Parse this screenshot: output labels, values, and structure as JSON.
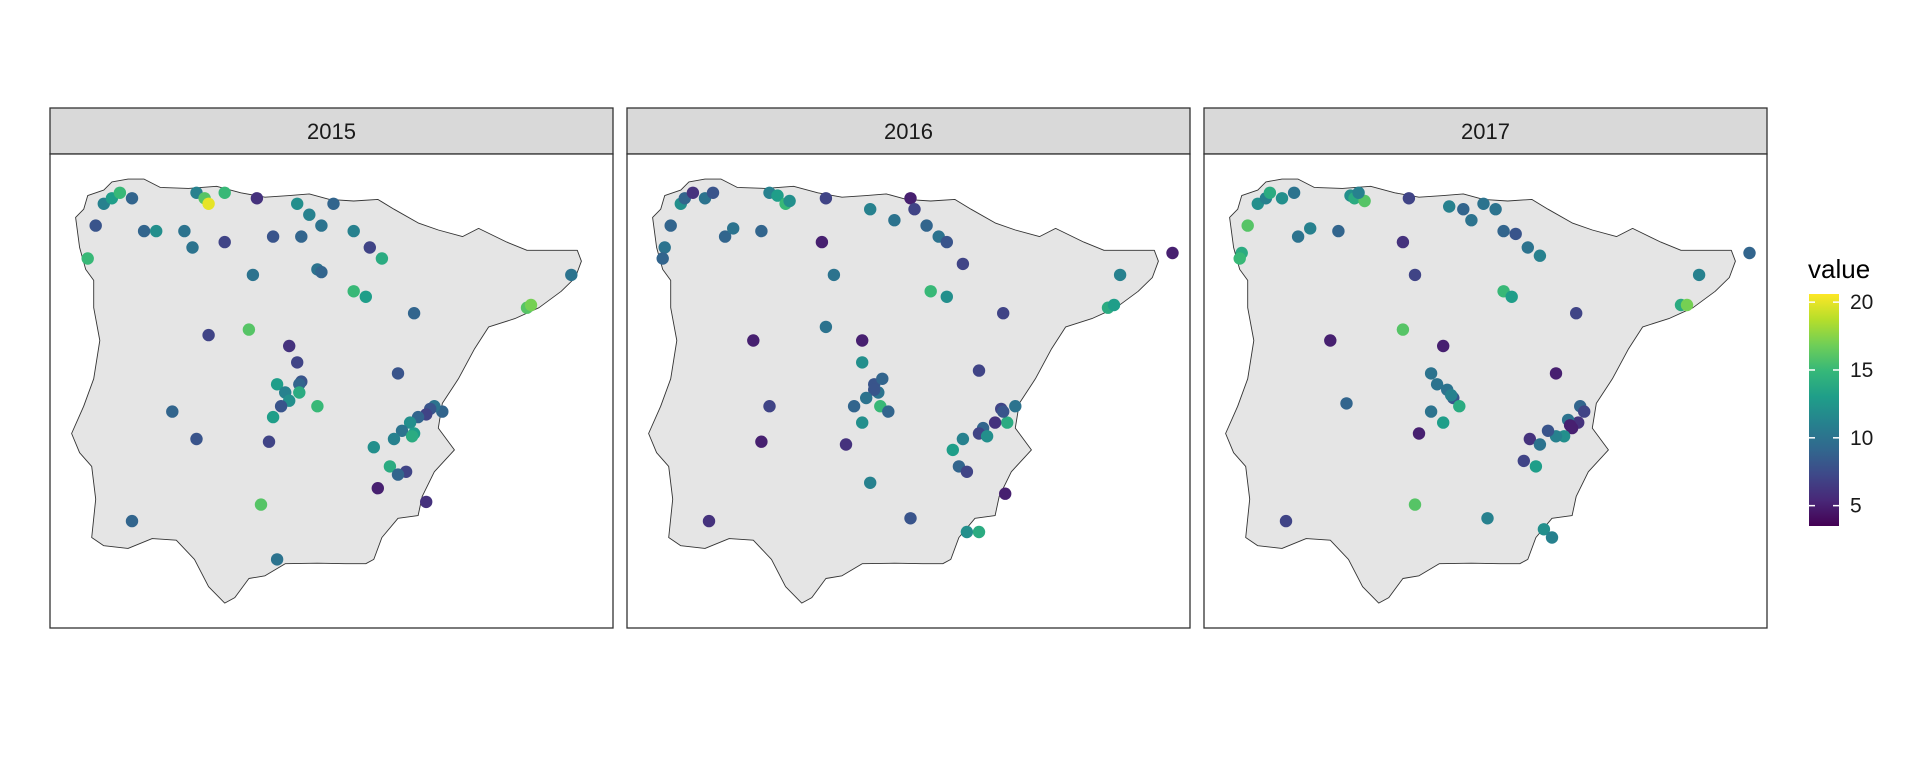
{
  "chart_data": {
    "type": "scatter",
    "subtype": "faceted point map (Iberian Peninsula)",
    "facets": [
      "2015",
      "2016",
      "2017"
    ],
    "legend": {
      "title": "value",
      "placement": "right",
      "ticks": [
        5,
        10,
        15,
        20
      ],
      "range": [
        3.5,
        20.6
      ],
      "palette": [
        "#440154",
        "#482878",
        "#3e4989",
        "#31688e",
        "#26828e",
        "#1f9e89",
        "#35b779",
        "#6ece58",
        "#b5de2b",
        "#fde725"
      ]
    },
    "grid": false,
    "points": {
      "2015": [
        [
          -8.6,
          43.3,
          11
        ],
        [
          -8.4,
          43.4,
          13
        ],
        [
          -8.2,
          43.5,
          15
        ],
        [
          -7.9,
          43.4,
          9
        ],
        [
          -8.8,
          42.9,
          8
        ],
        [
          -9.0,
          42.3,
          15
        ],
        [
          -7.6,
          42.8,
          9
        ],
        [
          -7.3,
          42.8,
          12
        ],
        [
          -6.3,
          43.5,
          11
        ],
        [
          -6.1,
          43.4,
          16
        ],
        [
          -6.0,
          43.3,
          20
        ],
        [
          -5.6,
          43.5,
          15
        ],
        [
          -4.8,
          43.4,
          6
        ],
        [
          -6.4,
          42.5,
          10
        ],
        [
          -6.6,
          42.8,
          10
        ],
        [
          -5.6,
          42.6,
          7
        ],
        [
          -4.9,
          42.0,
          10
        ],
        [
          -4.4,
          42.7,
          8
        ],
        [
          -3.8,
          43.3,
          12
        ],
        [
          -3.5,
          43.1,
          11
        ],
        [
          -3.2,
          42.9,
          10
        ],
        [
          -2.9,
          43.3,
          9
        ],
        [
          -3.7,
          42.7,
          9
        ],
        [
          -2.4,
          42.8,
          11
        ],
        [
          -2.0,
          42.5,
          7
        ],
        [
          -3.3,
          42.1,
          10
        ],
        [
          -3.2,
          42.05,
          9
        ],
        [
          -1.7,
          42.3,
          14
        ],
        [
          -2.4,
          41.7,
          15
        ],
        [
          -2.1,
          41.6,
          13
        ],
        [
          -0.9,
          41.3,
          9
        ],
        [
          1.9,
          41.4,
          16
        ],
        [
          2.0,
          41.45,
          17
        ],
        [
          3.0,
          42.0,
          10
        ],
        [
          -6.0,
          40.9,
          7
        ],
        [
          -5.0,
          41.0,
          16
        ],
        [
          -4.0,
          40.7,
          6
        ],
        [
          -3.8,
          40.4,
          7
        ],
        [
          -4.3,
          40.0,
          13
        ],
        [
          -3.7,
          40.05,
          8
        ],
        [
          -3.75,
          40.0,
          9
        ],
        [
          -4.1,
          39.85,
          11
        ],
        [
          -4.0,
          39.7,
          12
        ],
        [
          -3.75,
          39.85,
          14
        ],
        [
          -4.2,
          39.6,
          8
        ],
        [
          -3.3,
          39.6,
          15
        ],
        [
          -4.4,
          39.4,
          13
        ],
        [
          -6.9,
          39.5,
          9
        ],
        [
          -6.3,
          39.0,
          8
        ],
        [
          -4.5,
          38.95,
          7
        ],
        [
          -1.3,
          40.2,
          8
        ],
        [
          -0.2,
          39.5,
          9
        ],
        [
          -0.4,
          39.6,
          10
        ],
        [
          -0.5,
          39.55,
          8
        ],
        [
          -0.6,
          39.45,
          7
        ],
        [
          -0.8,
          39.4,
          9
        ],
        [
          -1.0,
          39.3,
          12
        ],
        [
          -1.2,
          39.15,
          10
        ],
        [
          -0.9,
          39.1,
          13
        ],
        [
          -0.95,
          39.05,
          14
        ],
        [
          -1.4,
          39.0,
          11
        ],
        [
          -1.9,
          38.85,
          12
        ],
        [
          -1.5,
          38.5,
          14
        ],
        [
          -1.1,
          38.4,
          7
        ],
        [
          -1.3,
          38.35,
          9
        ],
        [
          -1.8,
          38.1,
          5
        ],
        [
          -0.6,
          37.85,
          6
        ],
        [
          -7.9,
          37.5,
          9
        ],
        [
          -4.7,
          37.8,
          16
        ],
        [
          -4.3,
          36.8,
          10
        ]
      ],
      "2016": [
        [
          -8.6,
          43.3,
          12
        ],
        [
          -8.5,
          43.4,
          9
        ],
        [
          -8.3,
          43.5,
          6
        ],
        [
          -8.0,
          43.4,
          10
        ],
        [
          -7.8,
          43.5,
          8
        ],
        [
          -8.85,
          42.9,
          9
        ],
        [
          -9.0,
          42.5,
          10
        ],
        [
          -9.05,
          42.3,
          9
        ],
        [
          -7.5,
          42.7,
          9
        ],
        [
          -7.3,
          42.85,
          10
        ],
        [
          -6.4,
          43.5,
          11
        ],
        [
          -6.2,
          43.45,
          13
        ],
        [
          -6.0,
          43.3,
          15
        ],
        [
          -5.9,
          43.35,
          12
        ],
        [
          -5.0,
          43.4,
          7
        ],
        [
          -6.6,
          42.8,
          9
        ],
        [
          -5.1,
          42.6,
          5
        ],
        [
          -4.8,
          42.0,
          10
        ],
        [
          -3.9,
          43.2,
          11
        ],
        [
          -3.3,
          43.0,
          10
        ],
        [
          -2.9,
          43.4,
          5
        ],
        [
          -2.8,
          43.2,
          7
        ],
        [
          -2.5,
          42.9,
          9
        ],
        [
          -2.2,
          42.7,
          10
        ],
        [
          -2.0,
          42.6,
          8
        ],
        [
          -1.6,
          42.2,
          7
        ],
        [
          -2.4,
          41.7,
          15
        ],
        [
          -2.0,
          41.6,
          12
        ],
        [
          -0.6,
          41.3,
          7
        ],
        [
          2.0,
          41.4,
          14
        ],
        [
          2.15,
          41.45,
          13
        ],
        [
          2.3,
          42.0,
          11
        ],
        [
          3.6,
          42.4,
          5
        ],
        [
          -6.8,
          40.8,
          5
        ],
        [
          -5.0,
          41.05,
          10
        ],
        [
          -4.1,
          40.8,
          5
        ],
        [
          -4.1,
          40.4,
          12
        ],
        [
          -3.8,
          40.0,
          8
        ],
        [
          -3.6,
          40.1,
          9
        ],
        [
          -3.7,
          39.85,
          10
        ],
        [
          -3.8,
          39.9,
          8
        ],
        [
          -4.0,
          39.75,
          10
        ],
        [
          -4.3,
          39.6,
          9
        ],
        [
          -3.65,
          39.6,
          15
        ],
        [
          -3.45,
          39.5,
          9
        ],
        [
          -4.1,
          39.3,
          12
        ],
        [
          -6.4,
          39.6,
          7
        ],
        [
          -6.6,
          38.95,
          5
        ],
        [
          -4.5,
          38.9,
          6
        ],
        [
          -1.2,
          40.25,
          7
        ],
        [
          -0.3,
          39.6,
          10
        ],
        [
          -0.65,
          39.55,
          7
        ],
        [
          -0.5,
          39.3,
          14
        ],
        [
          -0.6,
          39.5,
          8
        ],
        [
          -0.8,
          39.3,
          6
        ],
        [
          -1.1,
          39.2,
          9
        ],
        [
          -1.2,
          39.1,
          7
        ],
        [
          -1.0,
          39.05,
          12
        ],
        [
          -1.6,
          39.0,
          11
        ],
        [
          -1.85,
          38.8,
          13
        ],
        [
          -1.7,
          38.5,
          9
        ],
        [
          -1.5,
          38.4,
          7
        ],
        [
          -0.55,
          38.0,
          5
        ],
        [
          -7.9,
          37.5,
          6
        ],
        [
          -3.9,
          38.2,
          11
        ],
        [
          -2.9,
          37.55,
          8
        ],
        [
          -1.5,
          37.3,
          12
        ],
        [
          -1.2,
          37.3,
          14
        ]
      ],
      "2017": [
        [
          -8.6,
          43.3,
          12
        ],
        [
          -8.4,
          43.4,
          11
        ],
        [
          -8.3,
          43.5,
          14
        ],
        [
          -8.0,
          43.4,
          12
        ],
        [
          -7.7,
          43.5,
          10
        ],
        [
          -8.85,
          42.9,
          16
        ],
        [
          -9.0,
          42.4,
          14
        ],
        [
          -9.05,
          42.3,
          15
        ],
        [
          -7.6,
          42.7,
          10
        ],
        [
          -7.3,
          42.85,
          11
        ],
        [
          -6.3,
          43.45,
          12
        ],
        [
          -6.2,
          43.4,
          14
        ],
        [
          -5.95,
          43.35,
          16
        ],
        [
          -6.1,
          43.5,
          11
        ],
        [
          -4.85,
          43.4,
          7
        ],
        [
          -6.6,
          42.8,
          9
        ],
        [
          -5.0,
          42.6,
          6
        ],
        [
          -4.7,
          42.0,
          7
        ],
        [
          -3.85,
          43.25,
          11
        ],
        [
          -3.5,
          43.2,
          9
        ],
        [
          -3.3,
          43.0,
          10
        ],
        [
          -3.0,
          43.3,
          10
        ],
        [
          -2.7,
          43.2,
          10
        ],
        [
          -2.5,
          42.8,
          9
        ],
        [
          -2.2,
          42.75,
          8
        ],
        [
          -1.9,
          42.5,
          10
        ],
        [
          -1.6,
          42.35,
          11
        ],
        [
          -2.5,
          41.7,
          15
        ],
        [
          -2.3,
          41.6,
          13
        ],
        [
          -0.7,
          41.3,
          7
        ],
        [
          1.9,
          41.45,
          14
        ],
        [
          2.05,
          41.45,
          17
        ],
        [
          2.35,
          42.0,
          11
        ],
        [
          3.6,
          42.4,
          9
        ],
        [
          -6.8,
          40.8,
          5
        ],
        [
          -5.0,
          41.0,
          16
        ],
        [
          -4.0,
          40.7,
          5
        ],
        [
          -4.3,
          40.2,
          10
        ],
        [
          -4.15,
          40.0,
          10
        ],
        [
          -3.9,
          39.9,
          10
        ],
        [
          -3.75,
          39.75,
          8
        ],
        [
          -3.8,
          39.8,
          11
        ],
        [
          -3.6,
          39.6,
          14
        ],
        [
          -4.3,
          39.5,
          10
        ],
        [
          -4.0,
          39.3,
          13
        ],
        [
          -6.4,
          39.65,
          9
        ],
        [
          -4.6,
          39.1,
          5
        ],
        [
          -1.2,
          40.2,
          5
        ],
        [
          -0.6,
          39.6,
          9
        ],
        [
          -0.5,
          39.5,
          7
        ],
        [
          -0.65,
          39.3,
          6
        ],
        [
          -0.8,
          39.2,
          5
        ],
        [
          -0.9,
          39.35,
          10
        ],
        [
          -0.85,
          39.25,
          5
        ],
        [
          -1.0,
          39.05,
          12
        ],
        [
          -1.2,
          39.05,
          11
        ],
        [
          -1.4,
          39.15,
          8
        ],
        [
          -1.85,
          39.0,
          6
        ],
        [
          -1.6,
          38.9,
          10
        ],
        [
          -1.7,
          38.5,
          13
        ],
        [
          -2.0,
          38.6,
          7
        ],
        [
          -7.9,
          37.5,
          7
        ],
        [
          -4.7,
          37.8,
          16
        ],
        [
          -2.9,
          37.55,
          11
        ],
        [
          -1.5,
          37.35,
          12
        ],
        [
          -1.3,
          37.2,
          11
        ]
      ]
    }
  }
}
